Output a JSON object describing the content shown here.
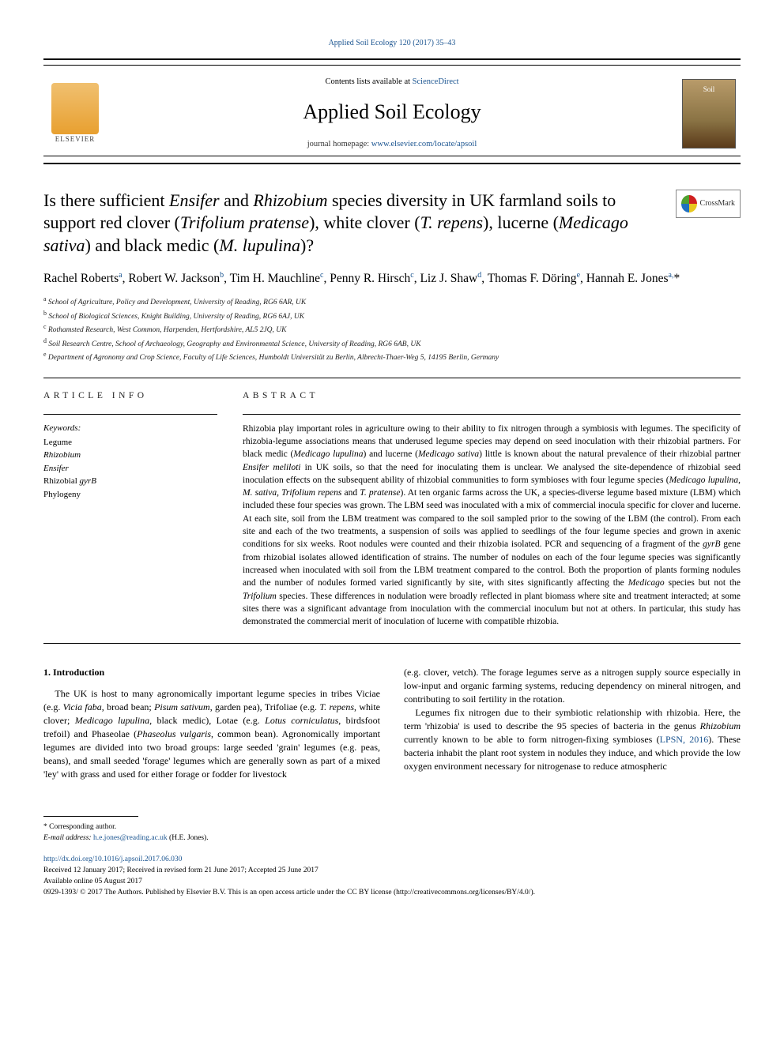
{
  "citation": "Applied Soil Ecology 120 (2017) 35–43",
  "header": {
    "contents_prefix": "Contents lists available at ",
    "contents_link": "ScienceDirect",
    "journal_name": "Applied Soil Ecology",
    "homepage_prefix": "journal homepage: ",
    "homepage_link": "www.elsevier.com/locate/apsoil",
    "elsevier_label": "ELSEVIER",
    "cover_label": "Soil"
  },
  "crossmark_label": "CrossMark",
  "title_html": "Is there sufficient <em>Ensifer</em> and <em>Rhizobium</em> species diversity in UK farmland soils to support red clover (<em>Trifolium pratense</em>), white clover (<em>T. repens</em>), lucerne (<em>Medicago sativa</em>) and black medic (<em>M. lupulina</em>)?",
  "authors_html": "Rachel Roberts<sup>a</sup>, Robert W. Jackson<sup>b</sup>, Tim H. Mauchline<sup>c</sup>, Penny R. Hirsch<sup>c</sup>, Liz J. Shaw<sup>d</sup>, Thomas F. Döring<sup>e</sup>, Hannah E. Jones<sup>a,</sup>*",
  "affiliations": [
    {
      "sup": "a",
      "text": "School of Agriculture, Policy and Development, University of Reading, RG6 6AR, UK"
    },
    {
      "sup": "b",
      "text": "School of Biological Sciences, Knight Building, University of Reading, RG6 6AJ, UK"
    },
    {
      "sup": "c",
      "text": "Rothamsted Research, West Common, Harpenden, Hertfordshire, AL5 2JQ, UK"
    },
    {
      "sup": "d",
      "text": "Soil Research Centre, School of Archaeology, Geography and Environmental Science, University of Reading, RG6 6AB, UK"
    },
    {
      "sup": "e",
      "text": "Department of Agronomy and Crop Science, Faculty of Life Sciences, Humboldt Universität zu Berlin, Albrecht-Thaer-Weg 5, 14195 Berlin, Germany"
    }
  ],
  "info_heading": "ARTICLE INFO",
  "abstract_heading": "ABSTRACT",
  "keywords_label": "Keywords:",
  "keywords": [
    "Legume",
    "Rhizobium",
    "Ensifer",
    "Rhizobial gyrB",
    "Phylogeny"
  ],
  "abstract_html": "Rhizobia play important roles in agriculture owing to their ability to fix nitrogen through a symbiosis with legumes. The specificity of rhizobia-legume associations means that underused legume species may depend on seed inoculation with their rhizobial partners. For black medic (<em>Medicago lupulina</em>) and lucerne (<em>Medicago sativa</em>) little is known about the natural prevalence of their rhizobial partner <em>Ensifer meliloti</em> in UK soils, so that the need for inoculating them is unclear. We analysed the site-dependence of rhizobial seed inoculation effects on the subsequent ability of rhizobial communities to form symbioses with four legume species (<em>Medicago lupulina</em>, <em>M. sativa</em>, <em>Trifolium repens</em> and <em>T. pratense</em>). At ten organic farms across the UK, a species-diverse legume based mixture (LBM) which included these four species was grown. The LBM seed was inoculated with a mix of commercial inocula specific for clover and lucerne. At each site, soil from the LBM treatment was compared to the soil sampled prior to the sowing of the LBM (the control). From each site and each of the two treatments, a suspension of soils was applied to seedlings of the four legume species and grown in axenic conditions for six weeks. Root nodules were counted and their rhizobia isolated. PCR and sequencing of a fragment of the <em>gyrB</em> gene from rhizobial isolates allowed identification of strains. The number of nodules on each of the four legume species was significantly increased when inoculated with soil from the LBM treatment compared to the control. Both the proportion of plants forming nodules and the number of nodules formed varied significantly by site, with sites significantly affecting the <em>Medicago</em> species but not the <em>Trifolium</em> species. These differences in nodulation were broadly reflected in plant biomass where site and treatment interacted; at some sites there was a significant advantage from inoculation with the commercial inoculum but not at others. In particular, this study has demonstrated the commercial merit of inoculation of lucerne with compatible rhizobia.",
  "intro_heading": "1. Introduction",
  "intro_p1_html": "The UK is host to many agronomically important legume species in tribes Viciae (e.g. <em>Vicia faba</em>, broad bean; <em>Pisum sativum</em>, garden pea), Trifoliae (e.g. <em>T. repens</em>, white clover; <em>Medicago lupulina</em>, black medic), Lotae (e.g. <em>Lotus corniculatus</em>, birdsfoot trefoil) and Phaseolae (<em>Phaseolus vulgaris</em>, common bean). Agronomically important legumes are divided into two broad groups: large seeded 'grain' legumes (e.g. peas, beans), and small seeded 'forage' legumes which are generally sown as part of a mixed 'ley' with grass and used for either forage or fodder for livestock",
  "intro_p2_html": "(e.g. clover, vetch). The forage legumes serve as a nitrogen supply source especially in low-input and organic farming systems, reducing dependency on mineral nitrogen, and contributing to soil fertility in the rotation.",
  "intro_p3_html": "Legumes fix nitrogen due to their symbiotic relationship with rhizobia. Here, the term 'rhizobia' is used to describe the 95 species of bacteria in the genus <em>Rhizobium</em> currently known to be able to form nitrogen-fixing symbioses (<span class=\"link\">LPSN, 2016</span>). These bacteria inhabit the plant root system in nodules they induce, and which provide the low oxygen environment necessary for nitrogenase to reduce atmospheric",
  "footer": {
    "corresponding": "* Corresponding author.",
    "email_label": "E-mail address: ",
    "email_link": "h.e.jones@reading.ac.uk",
    "email_suffix": " (H.E. Jones).",
    "doi": "http://dx.doi.org/10.1016/j.apsoil.2017.06.030",
    "received": "Received 12 January 2017; Received in revised form 21 June 2017; Accepted 25 June 2017",
    "available": "Available online 05 August 2017",
    "copyright": "0929-1393/ © 2017 The Authors. Published by Elsevier B.V. This is an open access article under the CC BY license (http://creativecommons.org/licenses/BY/4.0/)."
  },
  "colors": {
    "link": "#1a5490",
    "text": "#000000",
    "background": "#ffffff"
  }
}
